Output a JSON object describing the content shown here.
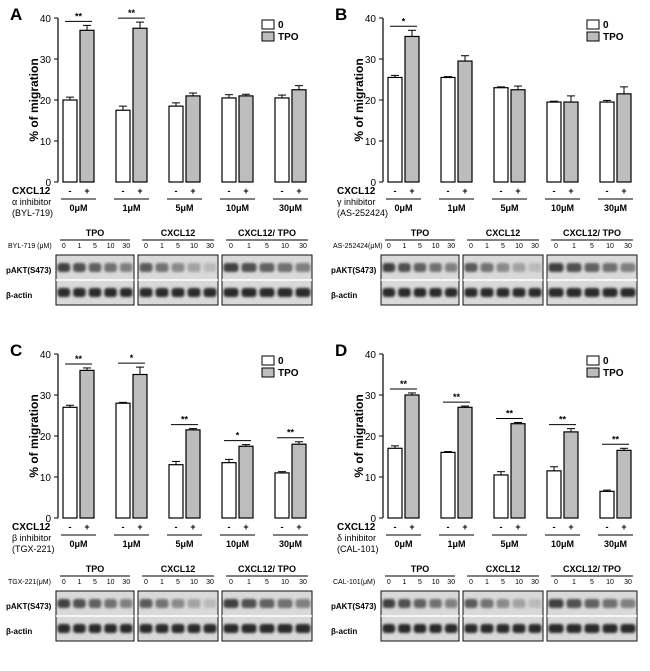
{
  "figure": {
    "panels": [
      {
        "id": "A",
        "ylabel": "% of migration",
        "yticks": [
          "0",
          "10",
          "20",
          "30",
          "40"
        ],
        "legend": [
          "0",
          "TPO"
        ],
        "row1_label": "CXCL12",
        "row1_signs": [
          "-",
          "+"
        ],
        "row2_label": "α inhibitor",
        "row3_label": "(BYL-719)",
        "doses": [
          "0μM",
          "1μM",
          "5μM",
          "10μM",
          "30μM"
        ],
        "blot_header": "BYL-719 (μM)",
        "blot_groups": [
          "TPO",
          "CXCL12",
          "CXCL12/ TPO"
        ],
        "blot_lanes": [
          "0",
          "1",
          "5",
          "10",
          "30"
        ],
        "blot_rows": [
          "pAKT(S473)",
          "β-actin"
        ],
        "sig": [
          {
            "group": 0,
            "text": "**"
          },
          {
            "group": 1,
            "text": "**"
          }
        ]
      },
      {
        "id": "B",
        "ylabel": "% of migration",
        "yticks": [
          "0",
          "10",
          "20",
          "30",
          "40"
        ],
        "legend": [
          "0",
          "TPO"
        ],
        "row1_label": "CXCL12",
        "row1_signs": [
          "-",
          "+"
        ],
        "row2_label": "γ inhibitor",
        "row3_label": "(AS-252424)",
        "doses": [
          "0μM",
          "1μM",
          "5μM",
          "10μM",
          "30μM"
        ],
        "blot_header": "AS-252424(μM)",
        "blot_groups": [
          "TPO",
          "CXCL12",
          "CXCL12/ TPO"
        ],
        "blot_lanes": [
          "0",
          "1",
          "5",
          "10",
          "30"
        ],
        "blot_rows": [
          "pAKT(S473)",
          "β-actin"
        ],
        "sig": [
          {
            "group": 0,
            "text": "*"
          }
        ]
      },
      {
        "id": "C",
        "ylabel": "% of migration",
        "yticks": [
          "0",
          "10",
          "20",
          "30",
          "40"
        ],
        "legend": [
          "0",
          "TPO"
        ],
        "row1_label": "CXCL12",
        "row1_signs": [
          "-",
          "+"
        ],
        "row2_label": "β inhibitor",
        "row3_label": "(TGX-221)",
        "doses": [
          "0μM",
          "1μM",
          "5μM",
          "10μM",
          "30μM"
        ],
        "blot_header": "TGX-221(μM)",
        "blot_groups": [
          "TPO",
          "CXCL12",
          "CXCL12/ TPO"
        ],
        "blot_lanes": [
          "0",
          "1",
          "5",
          "10",
          "30"
        ],
        "blot_rows": [
          "pAKT(S473)",
          "β-actin"
        ],
        "sig": [
          {
            "group": 0,
            "text": "**"
          },
          {
            "group": 1,
            "text": "*"
          },
          {
            "group": 2,
            "text": "**"
          },
          {
            "group": 3,
            "text": "*"
          },
          {
            "group": 4,
            "text": "**"
          }
        ]
      },
      {
        "id": "D",
        "ylabel": "% of migration",
        "yticks": [
          "0",
          "10",
          "20",
          "30",
          "40"
        ],
        "legend": [
          "0",
          "TPO"
        ],
        "row1_label": "CXCL12",
        "row1_signs": [
          "-",
          "+"
        ],
        "row2_label": "δ inhibitor",
        "row3_label": "(CAL-101)",
        "doses": [
          "0μM",
          "1μM",
          "5μM",
          "10μM",
          "30μM"
        ],
        "blot_header": "CAL-101(μM)",
        "blot_groups": [
          "TPO",
          "CXCL12",
          "CXCL12/ TPO"
        ],
        "blot_lanes": [
          "0",
          "1",
          "5",
          "10",
          "30"
        ],
        "blot_rows": [
          "pAKT(S473)",
          "β-actin"
        ],
        "sig": [
          {
            "group": 0,
            "text": "**"
          },
          {
            "group": 1,
            "text": "**"
          },
          {
            "group": 2,
            "text": "**"
          },
          {
            "group": 3,
            "text": "**"
          },
          {
            "group": 4,
            "text": "**"
          }
        ]
      }
    ],
    "colors": {
      "bar_0": "#ffffff",
      "bar_tpo": "#bdbdbd",
      "stroke": "#000000"
    }
  },
  "chart_data": [
    {
      "panel": "A",
      "type": "bar",
      "categories": [
        "0μM",
        "1μM",
        "5μM",
        "10μM",
        "30μM"
      ],
      "series": [
        {
          "name": "0",
          "values": [
            20,
            17.5,
            18.5,
            20.5,
            20.5
          ],
          "errors": [
            0.7,
            1.0,
            0.8,
            0.8,
            0.7
          ]
        },
        {
          "name": "TPO",
          "values": [
            37,
            37.5,
            21,
            21,
            22.5
          ],
          "errors": [
            1.2,
            1.5,
            0.7,
            0.4,
            1.0
          ]
        }
      ],
      "ylabel": "% of migration",
      "ylim": [
        0,
        40
      ]
    },
    {
      "panel": "B",
      "type": "bar",
      "categories": [
        "0μM",
        "1μM",
        "5μM",
        "10μM",
        "30μM"
      ],
      "series": [
        {
          "name": "0",
          "values": [
            25.5,
            25.5,
            23,
            19.5,
            19.5
          ],
          "errors": [
            0.5,
            0.2,
            0.2,
            0.2,
            0.4
          ]
        },
        {
          "name": "TPO",
          "values": [
            35.5,
            29.5,
            22.5,
            19.5,
            21.5
          ],
          "errors": [
            1.5,
            1.3,
            0.9,
            1.5,
            1.7
          ]
        }
      ],
      "ylabel": "% of migration",
      "ylim": [
        0,
        40
      ]
    },
    {
      "panel": "C",
      "type": "bar",
      "categories": [
        "0μM",
        "1μM",
        "5μM",
        "10μM",
        "30μM"
      ],
      "series": [
        {
          "name": "0",
          "values": [
            27,
            28,
            13,
            13.5,
            11
          ],
          "errors": [
            0.5,
            0.2,
            0.8,
            0.8,
            0.3
          ]
        },
        {
          "name": "TPO",
          "values": [
            36,
            35,
            21.5,
            17.5,
            18
          ],
          "errors": [
            0.6,
            1.8,
            0.3,
            0.4,
            0.6
          ]
        }
      ],
      "ylabel": "% of migration",
      "ylim": [
        0,
        40
      ]
    },
    {
      "panel": "D",
      "type": "bar",
      "categories": [
        "0μM",
        "1μM",
        "5μM",
        "10μM",
        "30μM"
      ],
      "series": [
        {
          "name": "0",
          "values": [
            17,
            16,
            10.5,
            11.5,
            6.5
          ],
          "errors": [
            0.6,
            0.2,
            0.8,
            1.0,
            0.3
          ]
        },
        {
          "name": "TPO",
          "values": [
            30,
            27,
            23,
            21,
            16.5
          ],
          "errors": [
            0.5,
            0.3,
            0.3,
            0.8,
            0.5
          ]
        }
      ],
      "ylabel": "% of migration",
      "ylim": [
        0,
        40
      ]
    }
  ]
}
